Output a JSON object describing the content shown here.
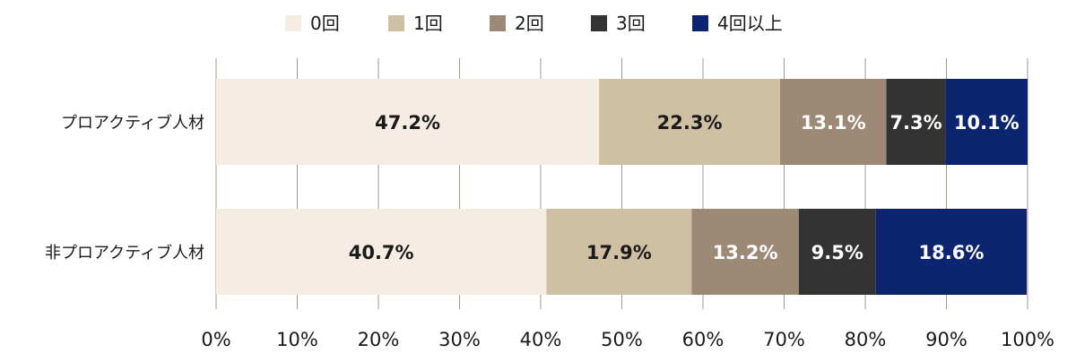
{
  "chart_data": {
    "type": "bar",
    "orientation": "horizontal",
    "stacked": true,
    "categories": [
      "プロアクティブ人材",
      "非プロアクティブ人材"
    ],
    "series": [
      {
        "name": "0回",
        "values": [
          47.2,
          40.7
        ],
        "labels": [
          "47.2%",
          "40.7%"
        ]
      },
      {
        "name": "1回",
        "values": [
          22.3,
          17.9
        ],
        "labels": [
          "22.3%",
          "17.9%"
        ]
      },
      {
        "name": "2回",
        "values": [
          13.1,
          13.2
        ],
        "labels": [
          "13.1%",
          "13.2%"
        ]
      },
      {
        "name": "3回",
        "values": [
          7.3,
          9.5
        ],
        "labels": [
          "7.3%",
          "9.5%"
        ]
      },
      {
        "name": "4回以上",
        "values": [
          10.1,
          18.6
        ],
        "labels": [
          "10.1%",
          "18.6%"
        ]
      }
    ],
    "xlim": [
      0,
      100
    ],
    "x_ticks": [
      0,
      10,
      20,
      30,
      40,
      50,
      60,
      70,
      80,
      90,
      100
    ],
    "x_tick_labels": [
      "0%",
      "10%",
      "20%",
      "30%",
      "40%",
      "50%",
      "60%",
      "70%",
      "80%",
      "90%",
      "100%"
    ],
    "grid": "vertical",
    "legend_position": "top",
    "colors": [
      "#f5ece3",
      "#cfbfa3",
      "#9c8a77",
      "#333333",
      "#0d2570"
    ],
    "label_colors": [
      "#1a1a1a",
      "#1a1a1a",
      "#ffffff",
      "#ffffff",
      "#ffffff"
    ]
  }
}
